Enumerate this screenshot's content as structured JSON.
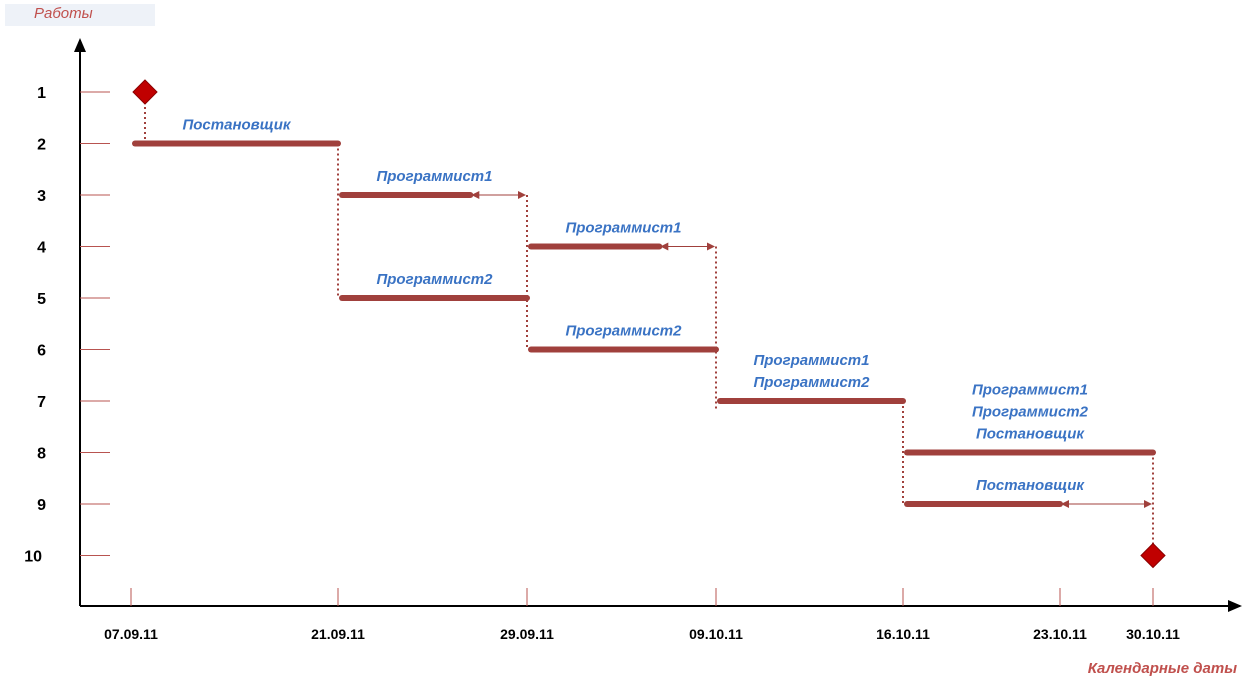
{
  "y_axis_title": "Работы",
  "x_axis_title": "Календарные даты",
  "rows": [
    "1",
    "2",
    "3",
    "4",
    "5",
    "6",
    "7",
    "8",
    "9",
    "10"
  ],
  "dates": [
    "07.09.11",
    "21.09.11",
    "29.09.11",
    "09.10.11",
    "16.10.11",
    "23.10.11",
    "30.10.11"
  ],
  "colors": {
    "bar": "#a0403c",
    "label": "#3a73c4",
    "milestone": "#c00000",
    "axis": "#000000",
    "tick": "#b85450"
  },
  "milestones": [
    {
      "row": 1,
      "date_index": 0
    },
    {
      "row": 10,
      "date_index": 6
    }
  ],
  "tasks": [
    {
      "row": 2,
      "start": 0,
      "end": 1,
      "label": [
        "Постановщик"
      ]
    },
    {
      "row": 3,
      "start": 1,
      "end": 1.7,
      "reserve_to": 2,
      "label": [
        "Программист1"
      ]
    },
    {
      "row": 4,
      "start": 2,
      "end": 2.7,
      "reserve_to": 3,
      "label": [
        "Программист1"
      ]
    },
    {
      "row": 5,
      "start": 1,
      "end": 2,
      "label": [
        "Программист2"
      ]
    },
    {
      "row": 6,
      "start": 2,
      "end": 3,
      "label": [
        "Программист2"
      ]
    },
    {
      "row": 7,
      "start": 3,
      "end": 4,
      "label": [
        "Программист1",
        "Программист2"
      ]
    },
    {
      "row": 8,
      "start": 4,
      "end": 6,
      "label": [
        "Программист1",
        "Программист2",
        "Постановщик"
      ]
    },
    {
      "row": 9,
      "start": 4,
      "end": 5,
      "reserve_to": 6,
      "label": [
        "Постановщик"
      ]
    }
  ],
  "dependencies": [
    {
      "date_index": 0,
      "from_row": 1,
      "to_row": 2
    },
    {
      "date_index": 1,
      "from_row": 2,
      "to_row": 5
    },
    {
      "date_index": 2,
      "from_row": 3,
      "to_row": 6
    },
    {
      "date_index": 3,
      "from_row": 4,
      "to_row": 7.2
    },
    {
      "date_index": 4,
      "from_row": 7,
      "to_row": 9
    },
    {
      "date_index": 6,
      "from_row": 8,
      "to_row": 10
    }
  ]
}
